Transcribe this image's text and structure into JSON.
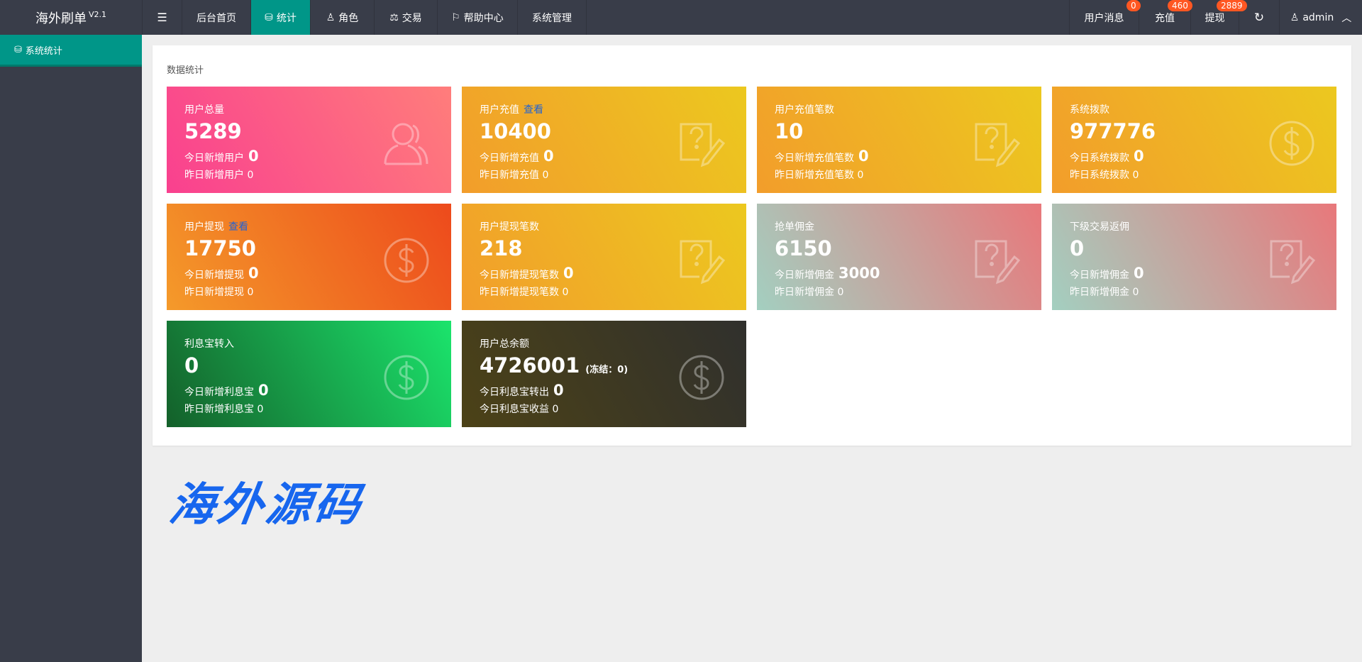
{
  "app": {
    "title": "海外刷单",
    "version": "V2.1"
  },
  "nav": [
    {
      "label": "",
      "icon": "menu-fold-icon"
    },
    {
      "label": "后台首页"
    },
    {
      "label": "统计",
      "icon": "database-icon",
      "active": true
    },
    {
      "label": "角色",
      "icon": "user-icon"
    },
    {
      "label": "交易",
      "icon": "scale-icon"
    },
    {
      "label": "帮助中心",
      "icon": "flag-icon"
    },
    {
      "label": "系统管理"
    }
  ],
  "right_nav": {
    "messages": {
      "label": "用户消息",
      "badge": "0"
    },
    "recharge": {
      "label": "充值",
      "badge": "460"
    },
    "withdraw": {
      "label": "提现",
      "badge": "2889"
    },
    "refresh_icon": "refresh-icon",
    "user": "admin"
  },
  "sidebar": {
    "items": [
      {
        "label": "系统统计",
        "icon": "database-icon"
      }
    ]
  },
  "panel": {
    "title": "数据统计"
  },
  "watermark": "海外源码",
  "colors": {
    "topbar": "#393d49",
    "accent": "#009688",
    "badge": "#ff5722",
    "link": "#1e62d6"
  },
  "cards": [
    {
      "label": "用户总量",
      "value": "5289",
      "today_label": "今日新增用户",
      "today": "0",
      "yesterday_label": "昨日新增用户",
      "yesterday": "0",
      "icon": "users-icon"
    },
    {
      "label": "用户充值",
      "link": "查看",
      "value": "10400",
      "today_label": "今日新增充值",
      "today": "0",
      "yesterday_label": "昨日新增充值",
      "yesterday": "0",
      "icon": "note-question-icon"
    },
    {
      "label": "用户充值笔数",
      "value": "10",
      "today_label": "今日新增充值笔数",
      "today": "0",
      "yesterday_label": "昨日新增充值笔数",
      "yesterday": "0",
      "icon": "note-question-icon"
    },
    {
      "label": "系统拨款",
      "value": "977776",
      "today_label": "今日系统拨款",
      "today": "0",
      "yesterday_label": "昨日系统拨款",
      "yesterday": "0",
      "icon": "dollar-icon"
    },
    {
      "label": "用户提现",
      "link": "查看",
      "value": "17750",
      "today_label": "今日新增提现",
      "today": "0",
      "yesterday_label": "昨日新增提现",
      "yesterday": "0",
      "icon": "dollar-icon"
    },
    {
      "label": "用户提现笔数",
      "value": "218",
      "today_label": "今日新增提现笔数",
      "today": "0",
      "yesterday_label": "昨日新增提现笔数",
      "yesterday": "0",
      "icon": "note-question-icon"
    },
    {
      "label": "抢单佣金",
      "value": "6150",
      "today_label": "今日新增佣金",
      "today": "3000",
      "yesterday_label": "昨日新增佣金",
      "yesterday": "0",
      "icon": "note-question-icon"
    },
    {
      "label": "下级交易返佣",
      "value": "0",
      "today_label": "今日新增佣金",
      "today": "0",
      "yesterday_label": "昨日新增佣金",
      "yesterday": "0",
      "icon": "note-question-icon"
    },
    {
      "label": "利息宝转入",
      "value": "0",
      "today_label": "今日新增利息宝",
      "today": "0",
      "yesterday_label": "昨日新增利息宝",
      "yesterday": "0",
      "icon": "dollar-icon"
    },
    {
      "label": "用户总余额",
      "value": "4726001",
      "extra": "(冻结：0)",
      "today_label": "今日利息宝转出",
      "today": "0",
      "yesterday_label": "今日利息宝收益",
      "yesterday": "0",
      "icon": "dollar-icon"
    }
  ]
}
